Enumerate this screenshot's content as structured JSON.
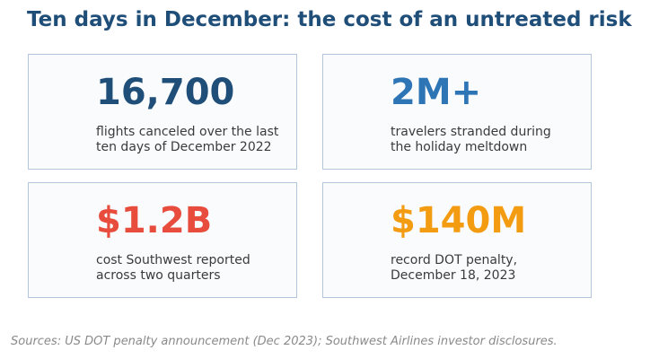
{
  "title": "Ten days in December: the cost of an untreated risk",
  "cards": [
    {
      "value": "16,700",
      "color": "#1f4e79",
      "lines": [
        "flights canceled over the last",
        "ten days of December 2022"
      ]
    },
    {
      "value": "2M+",
      "color": "#2e75b6",
      "lines": [
        "travelers stranded during",
        "the holiday meltdown"
      ]
    },
    {
      "value": "$1.2B",
      "color": "#e74c3c",
      "lines": [
        "cost Southwest reported",
        "across two quarters"
      ]
    },
    {
      "value": "$140M",
      "color": "#f39c12",
      "lines": [
        "record DOT penalty,",
        "December 18, 2023"
      ]
    }
  ],
  "source": "Sources: US DOT penalty announcement (Dec 2023); Southwest Airlines investor disclosures."
}
